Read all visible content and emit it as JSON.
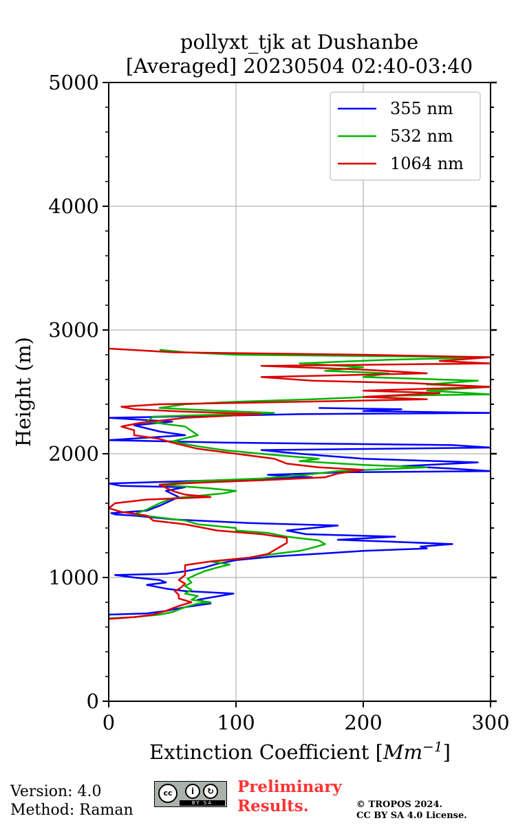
{
  "chart_data": {
    "type": "line",
    "orientation": "vertical-profile",
    "title": "pollyxt_tjk at Dushanbe",
    "subtitle": "[Averaged] 20230504 02:40-03:40",
    "xlabel": "Extinction Coefficient [",
    "xlabel_unit_base": "Mm",
    "xlabel_unit_exp": "−1",
    "xlabel_suffix": "]",
    "ylabel": "Height (m)",
    "xlim": [
      0,
      300
    ],
    "ylim": [
      0,
      5000
    ],
    "x_ticks": [
      "0",
      "100",
      "200",
      "300"
    ],
    "y_ticks": [
      "0",
      "1000",
      "2000",
      "3000",
      "4000",
      "5000"
    ],
    "grid": true,
    "legend_position": "top-right",
    "series": [
      {
        "name": "355 nm",
        "color": "#0000ff",
        "points": [
          [
            0,
            700
          ],
          [
            30,
            710
          ],
          [
            45,
            730
          ],
          [
            60,
            760
          ],
          [
            80,
            790
          ],
          [
            70,
            820
          ],
          [
            98,
            870
          ],
          [
            80,
            880
          ],
          [
            60,
            890
          ],
          [
            45,
            910
          ],
          [
            30,
            940
          ],
          [
            45,
            960
          ],
          [
            40,
            980
          ],
          [
            20,
            1000
          ],
          [
            5,
            1020
          ],
          [
            45,
            1030
          ],
          [
            60,
            1050
          ],
          [
            75,
            1080
          ],
          [
            85,
            1110
          ],
          [
            100,
            1140
          ],
          [
            130,
            1170
          ],
          [
            170,
            1195
          ],
          [
            200,
            1215
          ],
          [
            250,
            1235
          ],
          [
            245,
            1250
          ],
          [
            270,
            1270
          ],
          [
            220,
            1290
          ],
          [
            180,
            1305
          ],
          [
            225,
            1330
          ],
          [
            155,
            1350
          ],
          [
            140,
            1380
          ],
          [
            180,
            1420
          ],
          [
            110,
            1440
          ],
          [
            50,
            1470
          ],
          [
            20,
            1500
          ],
          [
            5,
            1510
          ],
          [
            2,
            1520
          ],
          [
            30,
            1540
          ],
          [
            40,
            1580
          ],
          [
            55,
            1650
          ],
          [
            45,
            1700
          ],
          [
            60,
            1730
          ],
          [
            10,
            1740
          ],
          [
            0,
            1760
          ],
          [
            100,
            1790
          ],
          [
            160,
            1810
          ],
          [
            125,
            1830
          ],
          [
            185,
            1850
          ],
          [
            300,
            1860
          ],
          [
            270,
            1880
          ],
          [
            230,
            1900
          ],
          [
            290,
            1930
          ],
          [
            200,
            1960
          ],
          [
            150,
            2000
          ],
          [
            120,
            2030
          ],
          [
            300,
            2050
          ],
          [
            270,
            2070
          ],
          [
            180,
            2080
          ],
          [
            90,
            2090
          ],
          [
            0,
            2110
          ],
          [
            30,
            2130
          ],
          [
            60,
            2150
          ],
          [
            40,
            2180
          ],
          [
            20,
            2230
          ],
          [
            50,
            2260
          ],
          [
            0,
            2290
          ],
          [
            100,
            2310
          ],
          [
            150,
            2320
          ],
          [
            300,
            2330
          ],
          [
            200,
            2345
          ],
          [
            230,
            2360
          ],
          [
            165,
            2370
          ]
        ]
      },
      {
        "name": "532 nm",
        "color": "#00b400",
        "points": [
          [
            0,
            670
          ],
          [
            20,
            680
          ],
          [
            40,
            700
          ],
          [
            50,
            720
          ],
          [
            60,
            760
          ],
          [
            70,
            790
          ],
          [
            80,
            800
          ],
          [
            65,
            820
          ],
          [
            70,
            850
          ],
          [
            60,
            870
          ],
          [
            65,
            900
          ],
          [
            60,
            930
          ],
          [
            65,
            960
          ],
          [
            62,
            990
          ],
          [
            68,
            1020
          ],
          [
            75,
            1050
          ],
          [
            85,
            1080
          ],
          [
            95,
            1105
          ],
          [
            80,
            1130
          ],
          [
            110,
            1160
          ],
          [
            130,
            1190
          ],
          [
            150,
            1215
          ],
          [
            160,
            1240
          ],
          [
            170,
            1270
          ],
          [
            165,
            1300
          ],
          [
            140,
            1330
          ],
          [
            125,
            1360
          ],
          [
            100,
            1380
          ],
          [
            100,
            1400
          ],
          [
            70,
            1430
          ],
          [
            60,
            1460
          ],
          [
            20,
            1510
          ],
          [
            30,
            1550
          ],
          [
            40,
            1600
          ],
          [
            50,
            1640
          ],
          [
            90,
            1680
          ],
          [
            100,
            1700
          ],
          [
            80,
            1720
          ],
          [
            40,
            1750
          ],
          [
            70,
            1780
          ],
          [
            120,
            1800
          ],
          [
            155,
            1830
          ],
          [
            180,
            1860
          ],
          [
            250,
            1890
          ],
          [
            200,
            1910
          ],
          [
            150,
            1940
          ],
          [
            165,
            1960
          ],
          [
            130,
            1990
          ],
          [
            90,
            2030
          ],
          [
            70,
            2060
          ],
          [
            50,
            2100
          ],
          [
            70,
            2150
          ],
          [
            60,
            2220
          ],
          [
            30,
            2260
          ],
          [
            35,
            2300
          ],
          [
            130,
            2330
          ],
          [
            80,
            2350
          ],
          [
            40,
            2370
          ],
          [
            60,
            2400
          ],
          [
            100,
            2420
          ],
          [
            160,
            2440
          ],
          [
            230,
            2470
          ],
          [
            300,
            2480
          ],
          [
            250,
            2510
          ],
          [
            300,
            2540
          ],
          [
            250,
            2560
          ],
          [
            290,
            2590
          ],
          [
            200,
            2620
          ],
          [
            220,
            2650
          ],
          [
            170,
            2670
          ],
          [
            200,
            2700
          ],
          [
            150,
            2730
          ],
          [
            220,
            2760
          ],
          [
            300,
            2780
          ],
          [
            100,
            2800
          ],
          [
            60,
            2820
          ],
          [
            40,
            2840
          ]
        ]
      },
      {
        "name": "1064 nm",
        "color": "#dc0000",
        "points": [
          [
            0,
            665
          ],
          [
            20,
            680
          ],
          [
            35,
            700
          ],
          [
            45,
            730
          ],
          [
            55,
            770
          ],
          [
            65,
            800
          ],
          [
            55,
            830
          ],
          [
            55,
            860
          ],
          [
            52,
            890
          ],
          [
            57,
            920
          ],
          [
            60,
            950
          ],
          [
            55,
            980
          ],
          [
            60,
            1020
          ],
          [
            60,
            1060
          ],
          [
            60,
            1100
          ],
          [
            80,
            1130
          ],
          [
            110,
            1160
          ],
          [
            125,
            1190
          ],
          [
            130,
            1220
          ],
          [
            135,
            1250
          ],
          [
            140,
            1280
          ],
          [
            140,
            1320
          ],
          [
            120,
            1350
          ],
          [
            85,
            1380
          ],
          [
            75,
            1400
          ],
          [
            60,
            1430
          ],
          [
            35,
            1460
          ],
          [
            30,
            1500
          ],
          [
            10,
            1530
          ],
          [
            0,
            1560
          ],
          [
            5,
            1600
          ],
          [
            30,
            1630
          ],
          [
            80,
            1650
          ],
          [
            60,
            1670
          ],
          [
            50,
            1700
          ],
          [
            40,
            1750
          ],
          [
            80,
            1770
          ],
          [
            130,
            1790
          ],
          [
            170,
            1810
          ],
          [
            180,
            1840
          ],
          [
            200,
            1870
          ],
          [
            165,
            1890
          ],
          [
            140,
            1920
          ],
          [
            130,
            1960
          ],
          [
            100,
            2000
          ],
          [
            70,
            2040
          ],
          [
            50,
            2090
          ],
          [
            40,
            2120
          ],
          [
            20,
            2150
          ],
          [
            20,
            2190
          ],
          [
            10,
            2220
          ],
          [
            25,
            2250
          ],
          [
            60,
            2290
          ],
          [
            120,
            2320
          ],
          [
            60,
            2340
          ],
          [
            20,
            2360
          ],
          [
            10,
            2380
          ],
          [
            40,
            2400
          ],
          [
            150,
            2420
          ],
          [
            250,
            2440
          ],
          [
            200,
            2460
          ],
          [
            260,
            2490
          ],
          [
            200,
            2510
          ],
          [
            300,
            2540
          ],
          [
            240,
            2570
          ],
          [
            160,
            2590
          ],
          [
            120,
            2620
          ],
          [
            250,
            2650
          ],
          [
            200,
            2680
          ],
          [
            120,
            2710
          ],
          [
            300,
            2730
          ],
          [
            260,
            2750
          ],
          [
            300,
            2780
          ],
          [
            200,
            2800
          ],
          [
            50,
            2820
          ],
          [
            0,
            2850
          ]
        ]
      }
    ]
  },
  "footer": {
    "version": "Version: 4.0",
    "method": "Method: Raman",
    "preliminary_line1": "Preliminary",
    "preliminary_line2": "Results.",
    "preliminary_color": "#ff3333",
    "copyright_line1": "© TROPOS 2024.",
    "copyright_line2": "CC BY SA 4.0 License.",
    "license_badge": {
      "cc": "cc",
      "by": "BY",
      "sa": "SA"
    }
  }
}
